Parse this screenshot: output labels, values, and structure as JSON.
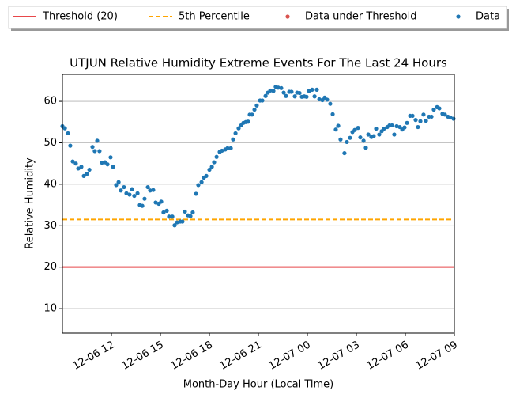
{
  "chart_data": {
    "type": "scatter",
    "title": "UTJUN Relative Humidity Extreme Events For The Last 24 Hours",
    "xlabel": "Month-Day Hour (Local Time)",
    "ylabel": "Relative Humidity",
    "xlim": [
      9,
      33
    ],
    "xticks": [
      {
        "value": 12,
        "label": "12-06 12"
      },
      {
        "value": 15,
        "label": "12-06 15"
      },
      {
        "value": 18,
        "label": "12-06 18"
      },
      {
        "value": 21,
        "label": "12-06 21"
      },
      {
        "value": 24,
        "label": "12-07 00"
      },
      {
        "value": 27,
        "label": "12-07 03"
      },
      {
        "value": 30,
        "label": "12-07 06"
      },
      {
        "value": 33,
        "label": "12-07 09"
      }
    ],
    "ylim": [
      4.1,
      66.5
    ],
    "yticks": [
      10,
      20,
      30,
      40,
      50,
      60
    ],
    "grid": "y",
    "reference_lines": [
      {
        "name": "Threshold (20)",
        "value": 20,
        "color": "#e8474a",
        "style": "solid"
      },
      {
        "name": "5th Percentile",
        "value": 31.5,
        "color": "#ffa500",
        "style": "dashed"
      }
    ],
    "series": [
      {
        "name": "Data under Threshold",
        "color": "#d9534f",
        "x": [],
        "values": []
      },
      {
        "name": "Data",
        "color": "#1f77b4",
        "x": [
          9.0,
          9.15,
          9.34,
          9.48,
          9.63,
          9.82,
          9.97,
          10.16,
          10.31,
          10.5,
          10.65,
          10.84,
          10.98,
          11.13,
          11.27,
          11.42,
          11.61,
          11.76,
          11.95,
          12.1,
          12.29,
          12.44,
          12.58,
          12.77,
          12.92,
          13.11,
          13.26,
          13.4,
          13.6,
          13.74,
          13.89,
          14.03,
          14.23,
          14.37,
          14.56,
          14.71,
          14.9,
          15.05,
          15.19,
          15.39,
          15.53,
          15.73,
          15.87,
          16.02,
          16.21,
          16.35,
          16.5,
          16.69,
          16.84,
          16.98,
          17.18,
          17.32,
          17.52,
          17.66,
          17.81,
          18.0,
          18.15,
          18.29,
          18.44,
          18.63,
          18.77,
          18.97,
          19.11,
          19.31,
          19.45,
          19.6,
          19.79,
          19.94,
          20.08,
          20.23,
          20.37,
          20.47,
          20.61,
          20.76,
          20.9,
          21.1,
          21.24,
          21.44,
          21.58,
          21.73,
          21.92,
          22.06,
          22.21,
          22.4,
          22.55,
          22.69,
          22.89,
          23.03,
          23.23,
          23.37,
          23.52,
          23.66,
          23.81,
          23.95,
          24.1,
          24.29,
          24.44,
          24.58,
          24.73,
          24.92,
          25.06,
          25.21,
          25.4,
          25.55,
          25.74,
          25.89,
          26.03,
          26.27,
          26.42,
          26.61,
          26.76,
          26.9,
          27.1,
          27.24,
          27.44,
          27.58,
          27.73,
          27.92,
          28.06,
          28.21,
          28.4,
          28.55,
          28.69,
          28.89,
          29.03,
          29.18,
          29.32,
          29.47,
          29.66,
          29.81,
          29.95,
          30.1,
          30.29,
          30.44,
          30.63,
          30.77,
          30.92,
          31.11,
          31.26,
          31.45,
          31.6,
          31.74,
          31.94,
          32.08,
          32.27,
          32.42,
          32.61,
          32.76,
          32.95
        ],
        "values": [
          54,
          53.5,
          52.3,
          49.3,
          45.5,
          45,
          43.8,
          44.2,
          42,
          42.5,
          43.5,
          49,
          48,
          50.5,
          48,
          45.2,
          45.3,
          44.8,
          46.5,
          44.2,
          39.8,
          40.5,
          38.5,
          39.3,
          37.8,
          37.5,
          38.8,
          37.2,
          37.8,
          35,
          34.8,
          36.5,
          39.3,
          38.5,
          38.6,
          35.6,
          35.3,
          35.8,
          33.2,
          33.6,
          32.2,
          32.2,
          30.1,
          30.8,
          31,
          31,
          33.4,
          32.5,
          32.3,
          33.2,
          37.7,
          39.8,
          40.5,
          41.6,
          42,
          43.5,
          44.2,
          45.3,
          46.6,
          47.8,
          48.1,
          48.4,
          48.7,
          48.7,
          50.8,
          52.3,
          53.5,
          54.2,
          54.8,
          55,
          55.1,
          56.8,
          56.8,
          58,
          59,
          60.2,
          60.2,
          61.3,
          62.1,
          62.6,
          62.5,
          63.5,
          63.3,
          63.2,
          62.1,
          61.3,
          62.3,
          62.3,
          61.2,
          62.1,
          62,
          61.1,
          61.2,
          61.1,
          62.5,
          62.8,
          61.2,
          62.8,
          60.5,
          60.3,
          60.9,
          60.4,
          59.4,
          56.9,
          53.2,
          54.1,
          50.8,
          47.5,
          50.2,
          51.2,
          52.6,
          53.1,
          53.6,
          51.3,
          50.5,
          48.8,
          52,
          51.4,
          51.6,
          53.4,
          52,
          52.8,
          53.4,
          53.8,
          54.2,
          54.2,
          52,
          54,
          53.8,
          53.2,
          53.7,
          54.8,
          56.5,
          56.5,
          55.5,
          53.8,
          55.2,
          56.8,
          55.3,
          56.3,
          56.3,
          58,
          58.6,
          58.3,
          57,
          56.8,
          56.3,
          56.1,
          55.8
        ]
      }
    ]
  }
}
